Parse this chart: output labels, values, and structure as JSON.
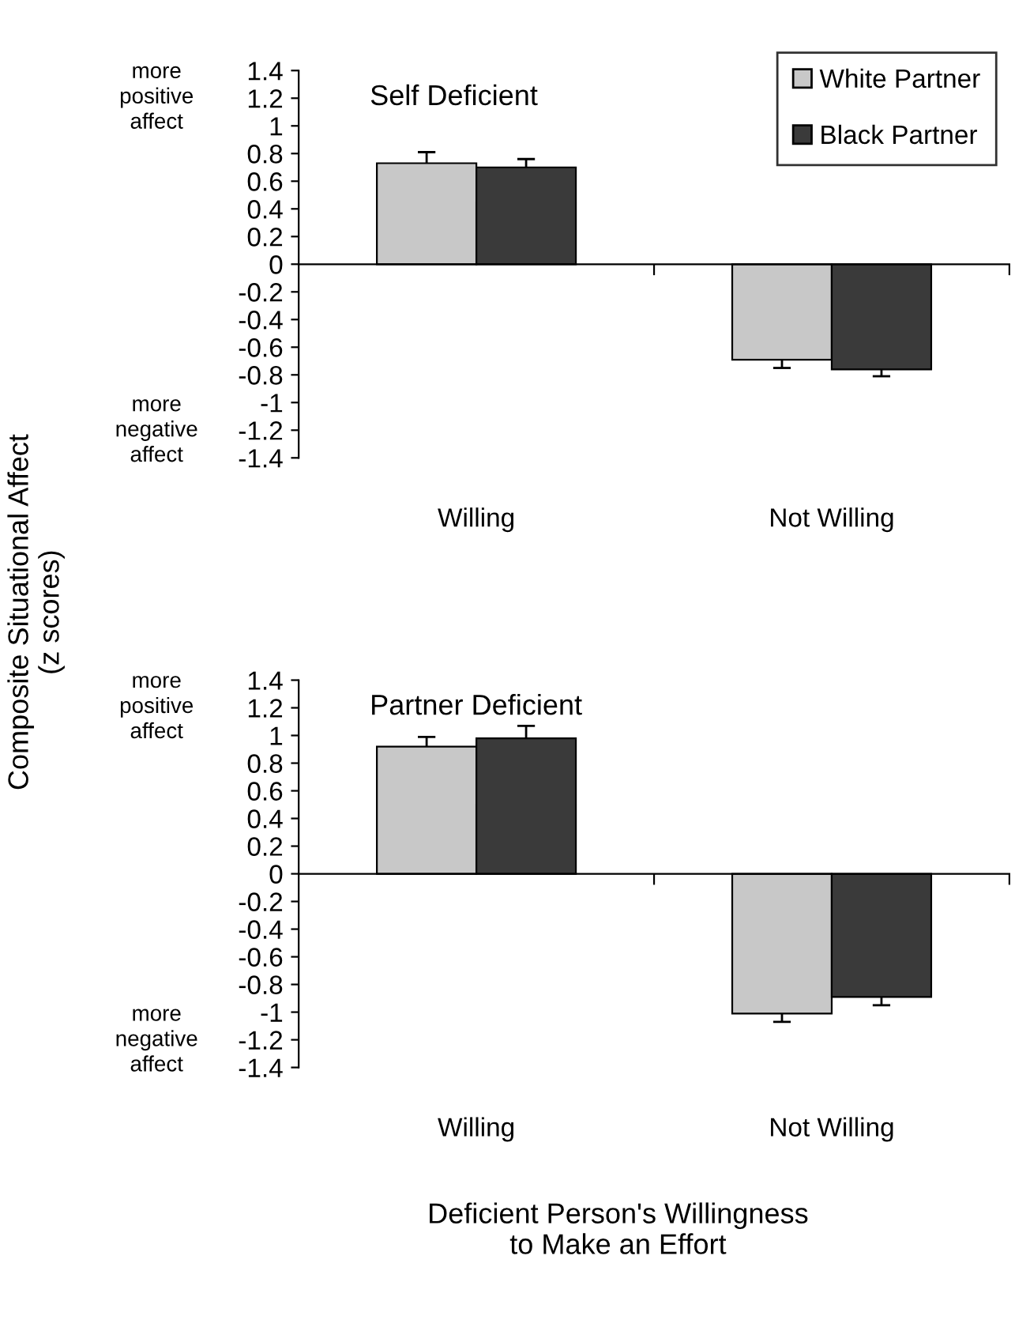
{
  "chart_data": [
    {
      "type": "bar",
      "title": "Self Deficient",
      "ylabel": "Composite Situational Affect (z scores)",
      "categories": [
        "Willing",
        "Not Willing"
      ],
      "ylim": [
        -1.4,
        1.4
      ],
      "yticks": [
        -1.4,
        -1.2,
        -1,
        -0.8,
        -0.6,
        -0.4,
        -0.2,
        0,
        0.2,
        0.4,
        0.6,
        0.8,
        1,
        1.2,
        1.4
      ],
      "legend": "top right",
      "annotations": [
        "more positive affect",
        "more negative affect"
      ],
      "series": [
        {
          "name": "White Partner",
          "color": "#c8c8c8",
          "values": [
            0.73,
            -0.69
          ],
          "errors": [
            [
              0.73,
              0.81
            ],
            [
              -0.75,
              -0.69
            ]
          ]
        },
        {
          "name": "Black Partner",
          "color": "#3a3a3a",
          "values": [
            0.7,
            -0.76
          ],
          "errors": [
            [
              0.7,
              0.76
            ],
            [
              -0.81,
              -0.76
            ]
          ]
        }
      ]
    },
    {
      "type": "bar",
      "title": "Partner Deficient",
      "xlabel": "Deficient Person's Willingness to Make an Effort",
      "categories": [
        "Willing",
        "Not Willing"
      ],
      "ylim": [
        -1.4,
        1.4
      ],
      "yticks": [
        -1.4,
        -1.2,
        -1,
        -0.8,
        -0.6,
        -0.4,
        -0.2,
        0,
        0.2,
        0.4,
        0.6,
        0.8,
        1,
        1.2,
        1.4
      ],
      "annotations": [
        "more positive affect",
        "more negative affect"
      ],
      "series": [
        {
          "color": "#c8c8c8",
          "values": [
            0.92,
            -1.01
          ],
          "errors": [
            [
              0.92,
              0.99
            ],
            [
              -1.07,
              -1.01
            ]
          ]
        },
        {
          "color": "#3a3a3a",
          "values": [
            0.98,
            -0.89
          ],
          "errors": [
            [
              0.98,
              1.07
            ],
            [
              -0.95,
              -0.89
            ]
          ]
        }
      ]
    }
  ]
}
